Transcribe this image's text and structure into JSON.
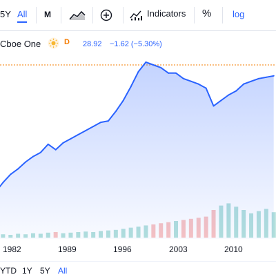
{
  "toolbar": {
    "range_partial": "5Y",
    "range_all": "All",
    "interval": "M",
    "chart_style_icon": "candles-chart-icon",
    "add_icon": "plus-circle-icon",
    "indicators_icon": "indicators-icon",
    "indicators_label": "Indicators",
    "percent_label": "%",
    "log_label": "log"
  },
  "legend": {
    "symbol_partial": "Cboe One",
    "delay_icon": "sun-icon",
    "delay_badge": "D",
    "price": "28.92",
    "change": "−1.62 (−5.30%)"
  },
  "chart_data": {
    "type": "area",
    "title": "",
    "xlabel": "",
    "ylabel": "",
    "x_ticks": [
      "1982",
      "1989",
      "1996",
      "2003",
      "2010"
    ],
    "series": [
      {
        "x": [
          1979.0,
          1980.0,
          1981.0,
          1982.0,
          1983.0,
          1984.0,
          1985.0,
          1986.0,
          1987.0,
          1988.0,
          1989.0,
          1990.0,
          1991.0,
          1992.0,
          1993.0,
          1994.0,
          1995.0,
          1996.0,
          1997.0,
          1998.0,
          1999.0,
          2000.0,
          2001.0,
          2002.0,
          2003.0,
          2004.0,
          2005.0,
          2006.0,
          2007.0,
          2008.0,
          2009.0,
          2010.0,
          2011.0,
          2012.0,
          2013.0,
          2014.0,
          2015.0,
          2016.0
        ],
        "values": [
          0.05,
          0.12,
          0.18,
          0.22,
          0.27,
          0.31,
          0.34,
          0.4,
          0.36,
          0.41,
          0.44,
          0.47,
          0.5,
          0.53,
          0.56,
          0.57,
          0.64,
          0.72,
          0.82,
          0.93,
          1.0,
          0.98,
          0.96,
          0.92,
          0.92,
          0.88,
          0.86,
          0.84,
          0.81,
          0.68,
          0.72,
          0.76,
          0.79,
          0.84,
          0.86,
          0.88,
          0.89,
          0.9
        ]
      }
    ],
    "volume": [
      0.05,
      0.06,
      0.05,
      0.07,
      0.06,
      0.08,
      0.07,
      0.09,
      0.1,
      0.08,
      0.09,
      0.1,
      0.11,
      0.1,
      0.12,
      0.13,
      0.14,
      0.16,
      0.18,
      0.2,
      0.22,
      0.24,
      0.26,
      0.28,
      0.3,
      0.32,
      0.34,
      0.36,
      0.38,
      0.5,
      0.58,
      0.62,
      0.56,
      0.5,
      0.44,
      0.48,
      0.52,
      0.46
    ],
    "reference_line": 0.98,
    "colors": {
      "line": "#2962ff",
      "fill": "#2962ff",
      "volume_up": "#26a69a",
      "volume_down": "#ef5350",
      "reference": "#f57c00"
    },
    "grid": false
  },
  "bottombar": {
    "ytd": "YTD",
    "one_year": "1Y",
    "five_year": "5Y",
    "all": "All"
  }
}
